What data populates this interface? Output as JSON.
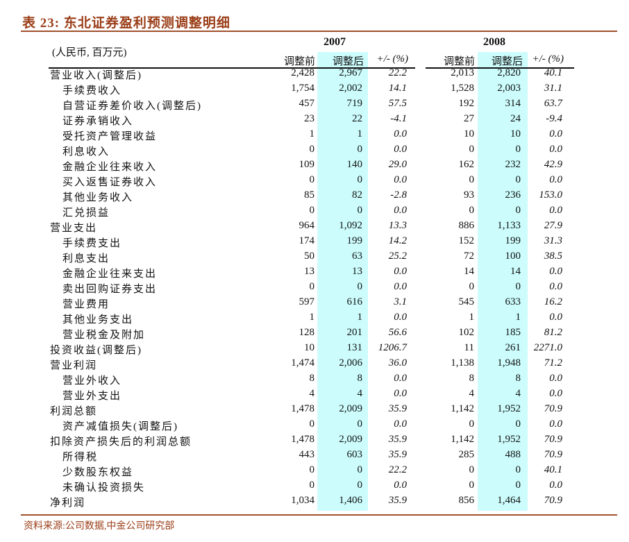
{
  "title": "表 23:  东北证券盈利预测调整明细",
  "unit": "(人民币, 百万元)",
  "years": [
    "2007",
    "2008"
  ],
  "col_headers": [
    "调整前",
    "调整后",
    "+/- (%)"
  ],
  "colors": {
    "title": "#9a3d17",
    "highlight": "#ccfcfc"
  },
  "rows": [
    {
      "label": "营业收入(调整后)",
      "level": 0,
      "v": [
        "2,428",
        "2,967",
        "22.2",
        "2,013",
        "2,820",
        "40.1"
      ]
    },
    {
      "label": "手续费收入",
      "level": 1,
      "v": [
        "1,754",
        "2,002",
        "14.1",
        "1,528",
        "2,003",
        "31.1"
      ]
    },
    {
      "label": "自营证券差价收入(调整后)",
      "level": 1,
      "v": [
        "457",
        "719",
        "57.5",
        "192",
        "314",
        "63.7"
      ]
    },
    {
      "label": "证券承销收入",
      "level": 1,
      "v": [
        "23",
        "22",
        "-4.1",
        "27",
        "24",
        "-9.4"
      ]
    },
    {
      "label": "受托资产管理收益",
      "level": 1,
      "v": [
        "1",
        "1",
        "0.0",
        "10",
        "10",
        "0.0"
      ]
    },
    {
      "label": "利息收入",
      "level": 1,
      "v": [
        "0",
        "0",
        "0.0",
        "0",
        "0",
        "0.0"
      ]
    },
    {
      "label": "金融企业往来收入",
      "level": 1,
      "v": [
        "109",
        "140",
        "29.0",
        "162",
        "232",
        "42.9"
      ]
    },
    {
      "label": "买入返售证券收入",
      "level": 1,
      "v": [
        "0",
        "0",
        "0.0",
        "0",
        "0",
        "0.0"
      ]
    },
    {
      "label": "其他业务收入",
      "level": 1,
      "v": [
        "85",
        "82",
        "-2.8",
        "93",
        "236",
        "153.0"
      ]
    },
    {
      "label": "汇兑损益",
      "level": 1,
      "v": [
        "0",
        "0",
        "0.0",
        "0",
        "0",
        "0.0"
      ]
    },
    {
      "label": "营业支出",
      "level": 0,
      "v": [
        "964",
        "1,092",
        "13.3",
        "886",
        "1,133",
        "27.9"
      ]
    },
    {
      "label": "手续费支出",
      "level": 1,
      "v": [
        "174",
        "199",
        "14.2",
        "152",
        "199",
        "31.3"
      ]
    },
    {
      "label": "利息支出",
      "level": 1,
      "v": [
        "50",
        "63",
        "25.2",
        "72",
        "100",
        "38.5"
      ]
    },
    {
      "label": "金融企业往来支出",
      "level": 1,
      "v": [
        "13",
        "13",
        "0.0",
        "14",
        "14",
        "0.0"
      ]
    },
    {
      "label": "卖出回购证券支出",
      "level": 1,
      "v": [
        "0",
        "0",
        "0.0",
        "0",
        "0",
        "0.0"
      ]
    },
    {
      "label": "营业费用",
      "level": 1,
      "v": [
        "597",
        "616",
        "3.1",
        "545",
        "633",
        "16.2"
      ]
    },
    {
      "label": "其他业务支出",
      "level": 1,
      "v": [
        "1",
        "1",
        "0.0",
        "1",
        "1",
        "0.0"
      ]
    },
    {
      "label": "营业税金及附加",
      "level": 1,
      "v": [
        "128",
        "201",
        "56.6",
        "102",
        "185",
        "81.2"
      ]
    },
    {
      "label": "投资收益(调整后)",
      "level": 0,
      "v": [
        "10",
        "131",
        "1206.7",
        "11",
        "261",
        "2271.0"
      ]
    },
    {
      "label": "营业利润",
      "level": 0,
      "v": [
        "1,474",
        "2,006",
        "36.0",
        "1,138",
        "1,948",
        "71.2"
      ]
    },
    {
      "label": "营业外收入",
      "level": 1,
      "v": [
        "8",
        "8",
        "0.0",
        "8",
        "8",
        "0.0"
      ]
    },
    {
      "label": "营业外支出",
      "level": 1,
      "v": [
        "4",
        "4",
        "0.0",
        "4",
        "4",
        "0.0"
      ]
    },
    {
      "label": "利润总额",
      "level": 0,
      "v": [
        "1,478",
        "2,009",
        "35.9",
        "1,142",
        "1,952",
        "70.9"
      ]
    },
    {
      "label": "资产减值损失(调整后)",
      "level": 1,
      "v": [
        "0",
        "0",
        "0.0",
        "0",
        "0",
        "0.0"
      ]
    },
    {
      "label": "扣除资产损失后的利润总额",
      "level": 0,
      "v": [
        "1,478",
        "2,009",
        "35.9",
        "1,142",
        "1,952",
        "70.9"
      ]
    },
    {
      "label": "所得税",
      "level": 1,
      "v": [
        "443",
        "603",
        "35.9",
        "285",
        "488",
        "70.9"
      ]
    },
    {
      "label": "少数股东权益",
      "level": 1,
      "v": [
        "0",
        "0",
        "22.2",
        "0",
        "0",
        "40.1"
      ]
    },
    {
      "label": "未确认投资损失",
      "level": 1,
      "v": [
        "0",
        "0",
        "0.0",
        "0",
        "0",
        "0.0"
      ]
    },
    {
      "label": "净利润",
      "level": 0,
      "v": [
        "1,034",
        "1,406",
        "35.9",
        "856",
        "1,464",
        "70.9"
      ]
    }
  ],
  "source": "资料来源:公司数据,中金公司研究部"
}
